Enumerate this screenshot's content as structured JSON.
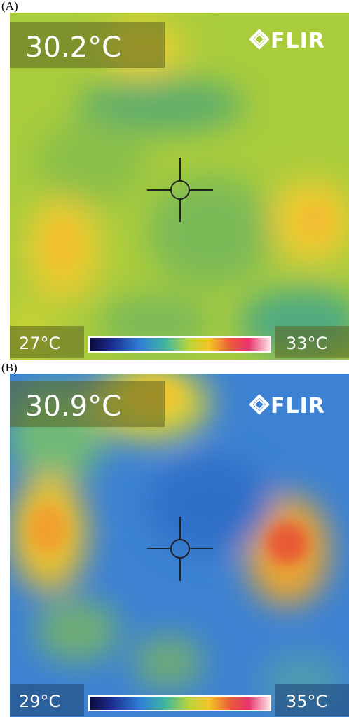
{
  "panels": [
    {
      "label": "(A)",
      "reading": "30.2°C",
      "logo": "FLIR",
      "scale_min": "27°C",
      "scale_max": "33°C"
    },
    {
      "label": "(B)",
      "reading": "30.9°C",
      "logo": "FLIR",
      "scale_min": "29°C",
      "scale_max": "35°C"
    }
  ]
}
